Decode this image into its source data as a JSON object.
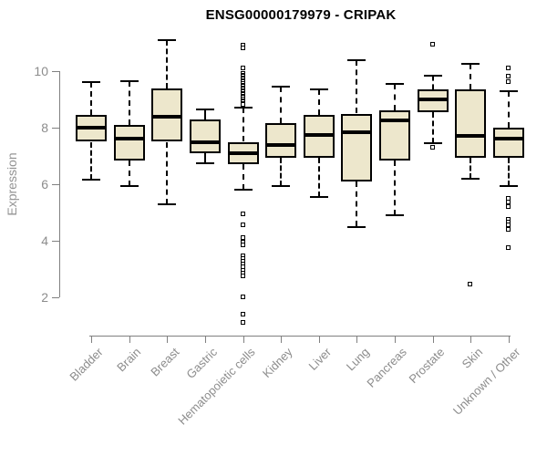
{
  "chart_data": {
    "type": "boxplot",
    "title": "ENSG00000179979 - CRIPAK",
    "xlabel": "",
    "ylabel": "Expression",
    "axis": {
      "y_ticks": [
        10,
        8,
        6,
        4,
        2
      ],
      "y_axis_range": [
        2,
        10
      ],
      "grid": false,
      "legend": "none"
    },
    "colors": {
      "box_fill": "#EDE7CC",
      "box_border": "#000000",
      "median": "#000000",
      "whisker": "#000000",
      "axis": "#808080",
      "tick_label": "#8c8c8c",
      "title": "#000000"
    },
    "categories": [
      "Bladder",
      "Brain",
      "Breast",
      "Gastric",
      "Hematopoietic cells",
      "Kidney",
      "Liver",
      "Lung",
      "Pancreas",
      "Prostate",
      "Skin",
      "Unknown / Other"
    ],
    "boxes": [
      {
        "category": "Bladder",
        "whisker_low": 6.15,
        "q1": 7.5,
        "median": 8.0,
        "q3": 8.45,
        "whisker_high": 9.6,
        "outliers": []
      },
      {
        "category": "Brain",
        "whisker_low": 5.95,
        "q1": 6.85,
        "median": 7.6,
        "q3": 8.1,
        "whisker_high": 9.65,
        "outliers": []
      },
      {
        "category": "Breast",
        "whisker_low": 5.3,
        "q1": 7.5,
        "median": 8.4,
        "q3": 9.4,
        "whisker_high": 11.1,
        "outliers": []
      },
      {
        "category": "Gastric",
        "whisker_low": 6.75,
        "q1": 7.1,
        "median": 7.5,
        "q3": 8.3,
        "whisker_high": 8.65,
        "outliers": []
      },
      {
        "category": "Hematopoietic cells",
        "whisker_low": 5.8,
        "q1": 6.7,
        "median": 7.1,
        "q3": 7.5,
        "whisker_high": 8.7,
        "outliers": [
          10.9,
          10.82,
          10.1,
          9.9,
          9.85,
          9.8,
          9.75,
          9.7,
          9.65,
          9.6,
          9.55,
          9.5,
          9.45,
          9.4,
          9.35,
          9.3,
          9.25,
          9.2,
          9.15,
          9.1,
          9.05,
          9.0,
          8.95,
          8.9,
          8.85,
          8.8,
          4.95,
          4.55,
          4.1,
          3.95,
          3.85,
          3.45,
          3.35,
          3.25,
          3.15,
          3.05,
          2.95,
          2.85,
          2.75,
          2.0,
          1.4,
          1.1
        ]
      },
      {
        "category": "Kidney",
        "whisker_low": 5.95,
        "q1": 6.95,
        "median": 7.4,
        "q3": 8.15,
        "whisker_high": 9.45,
        "outliers": []
      },
      {
        "category": "Liver",
        "whisker_low": 5.55,
        "q1": 6.95,
        "median": 7.75,
        "q3": 8.45,
        "whisker_high": 9.35,
        "outliers": []
      },
      {
        "category": "Lung",
        "whisker_low": 4.5,
        "q1": 6.1,
        "median": 7.85,
        "q3": 8.5,
        "whisker_high": 10.4,
        "outliers": []
      },
      {
        "category": "Pancreas",
        "whisker_low": 4.9,
        "q1": 6.85,
        "median": 8.25,
        "q3": 8.6,
        "whisker_high": 9.55,
        "outliers": []
      },
      {
        "category": "Prostate",
        "whisker_low": 7.45,
        "q1": 8.55,
        "median": 9.0,
        "q3": 9.35,
        "whisker_high": 9.85,
        "outliers": [
          10.95,
          7.3
        ]
      },
      {
        "category": "Skin",
        "whisker_low": 6.2,
        "q1": 6.95,
        "median": 7.7,
        "q3": 9.35,
        "whisker_high": 10.25,
        "outliers": [
          2.45
        ]
      },
      {
        "category": "Unknown / Other",
        "whisker_low": 5.95,
        "q1": 6.95,
        "median": 7.6,
        "q3": 8.0,
        "whisker_high": 9.3,
        "outliers": [
          10.1,
          9.8,
          9.6,
          5.5,
          5.35,
          5.2,
          4.75,
          4.65,
          4.55,
          4.4,
          3.75
        ]
      }
    ]
  }
}
